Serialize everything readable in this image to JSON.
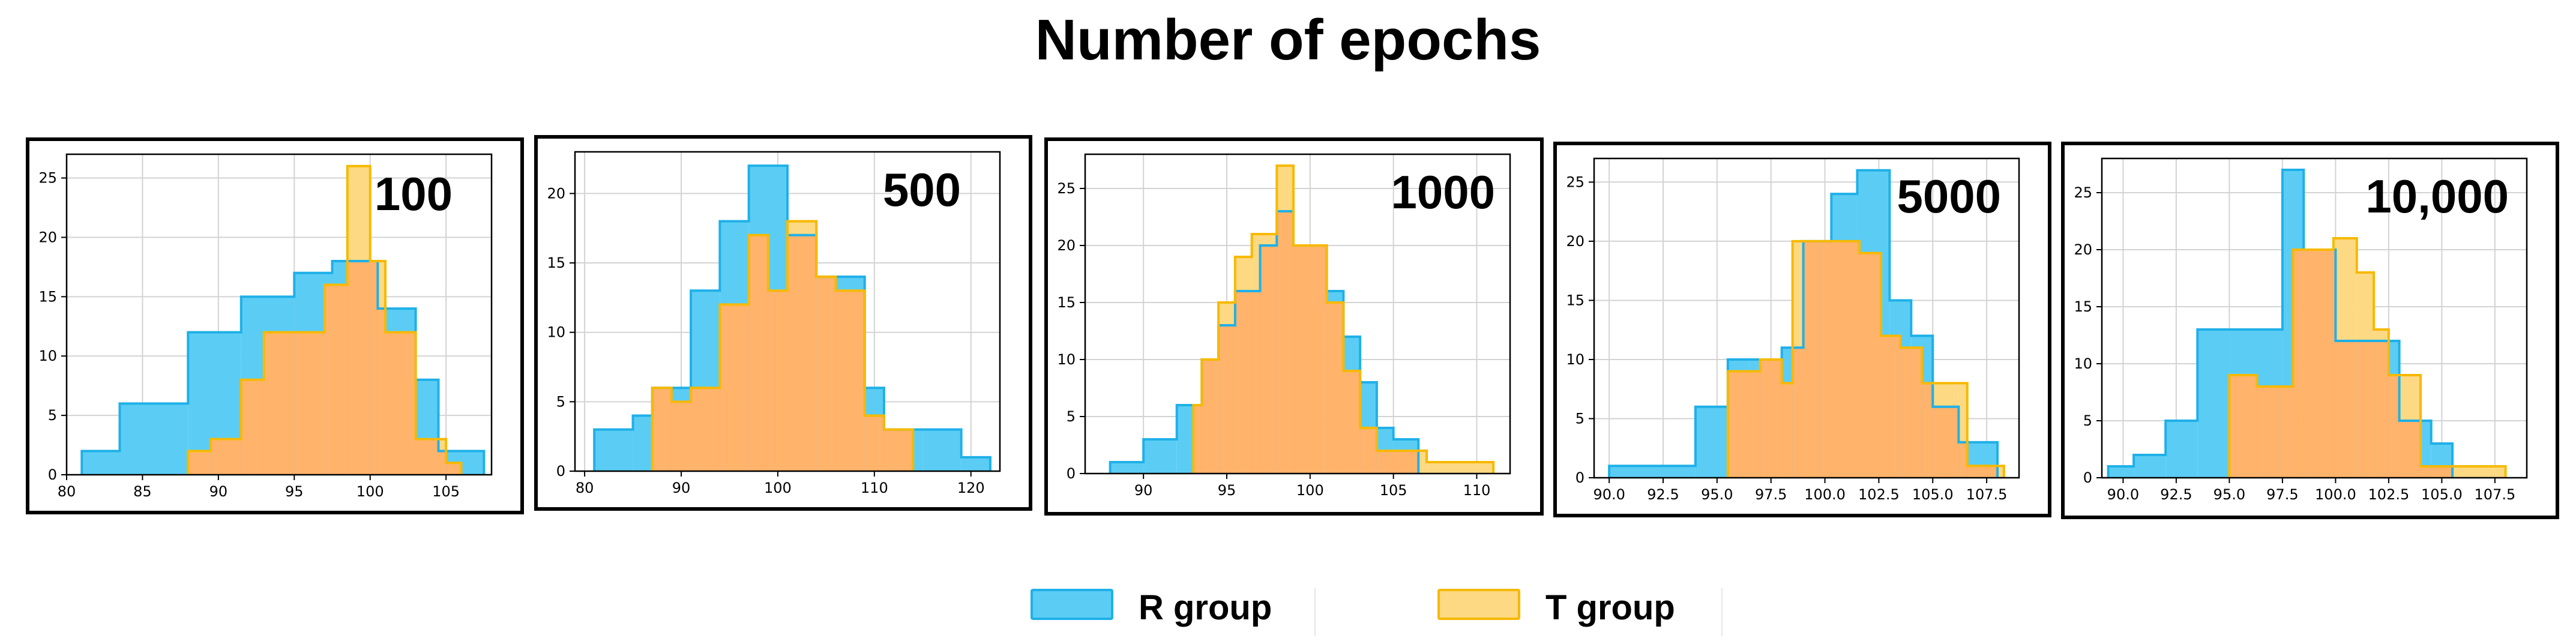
{
  "title": "Number of epochs",
  "colors": {
    "r_fill": "#5bcdf4",
    "r_edge": "#1fb0e8",
    "t_fill": "#ffb36b",
    "t_only": "#fcd982",
    "t_edge": "#f7b900",
    "grid": "#d3d3d3"
  },
  "legend": {
    "r_label": "R group",
    "t_label": "T group"
  },
  "chart_data": [
    {
      "type": "histogram",
      "panel_label": "100",
      "xlim": [
        80,
        108
      ],
      "ylim": [
        0,
        27
      ],
      "xticks": [
        80,
        85,
        90,
        95,
        100,
        105
      ],
      "xtick_labels": [
        "80",
        "85",
        "90",
        "95",
        "100",
        "105"
      ],
      "yticks": [
        0,
        5,
        10,
        15,
        20,
        25
      ],
      "grid": true,
      "series": [
        {
          "name": "R group",
          "edges": [
            81,
            83.5,
            88,
            91.5,
            95,
            97.5,
            100.5,
            103,
            104.5,
            107.5
          ],
          "counts": [
            2,
            6,
            12,
            15,
            17,
            18,
            14,
            8,
            2
          ]
        },
        {
          "name": "T group",
          "edges": [
            88,
            89.5,
            91.5,
            93,
            97,
            98.5,
            100,
            101,
            103,
            105,
            106
          ],
          "counts": [
            2,
            3,
            8,
            12,
            16,
            26,
            18,
            12,
            3,
            1
          ]
        }
      ]
    },
    {
      "type": "histogram",
      "panel_label": "500",
      "xlim": [
        79,
        123
      ],
      "ylim": [
        0,
        23
      ],
      "xticks": [
        80,
        90,
        100,
        110,
        120
      ],
      "xtick_labels": [
        "80",
        "90",
        "100",
        "110",
        "120"
      ],
      "yticks": [
        0,
        5,
        10,
        15,
        20
      ],
      "grid": true,
      "series": [
        {
          "name": "R group",
          "edges": [
            81,
            85,
            87,
            91,
            94,
            97,
            101,
            104,
            109,
            111,
            115,
            119,
            122
          ],
          "counts": [
            3,
            4,
            6,
            13,
            18,
            22,
            17,
            14,
            6,
            3,
            3,
            1
          ]
        },
        {
          "name": "T group",
          "edges": [
            87,
            89,
            91,
            94,
            97,
            99,
            101,
            104,
            106,
            109,
            111,
            114
          ],
          "counts": [
            6,
            5,
            6,
            12,
            17,
            13,
            18,
            14,
            13,
            4,
            3
          ]
        }
      ]
    },
    {
      "type": "histogram",
      "panel_label": "1000",
      "xlim": [
        86.5,
        112
      ],
      "ylim": [
        0,
        28
      ],
      "xticks": [
        90,
        95,
        100,
        105,
        110
      ],
      "xtick_labels": [
        "90",
        "95",
        "100",
        "105",
        "110"
      ],
      "yticks": [
        0,
        5,
        10,
        15,
        20,
        25
      ],
      "grid": true,
      "series": [
        {
          "name": "R group",
          "edges": [
            88,
            90,
            92,
            93.5,
            94.5,
            95.5,
            97,
            98,
            99,
            101,
            102,
            103,
            104,
            105,
            106.5
          ],
          "counts": [
            1,
            3,
            6,
            10,
            13,
            16,
            20,
            23,
            20,
            16,
            12,
            8,
            4,
            3
          ]
        },
        {
          "name": "T group",
          "edges": [
            93,
            93.5,
            94.5,
            95.5,
            96.5,
            98,
            99,
            101,
            102,
            103,
            104,
            107,
            111
          ],
          "counts": [
            6,
            10,
            15,
            19,
            21,
            27,
            20,
            15,
            9,
            4,
            2,
            1
          ]
        }
      ]
    },
    {
      "type": "histogram",
      "panel_label": "5000",
      "xlim": [
        89.3,
        109
      ],
      "ylim": [
        0,
        27
      ],
      "xticks": [
        90,
        92.5,
        95,
        97.5,
        100,
        102.5,
        105,
        107.5
      ],
      "xtick_labels": [
        "90.0",
        "92.5",
        "95.0",
        "97.5",
        "100.0",
        "102.5",
        "105.0",
        "107.5"
      ],
      "yticks": [
        0,
        5,
        10,
        15,
        20,
        25
      ],
      "grid": true,
      "series": [
        {
          "name": "R group",
          "edges": [
            90,
            94,
            95.5,
            96.5,
            98,
            99,
            100.3,
            101.5,
            103,
            104,
            105,
            106.2,
            108
          ],
          "counts": [
            1,
            6,
            10,
            10,
            11,
            20,
            24,
            26,
            15,
            12,
            6,
            3
          ]
        },
        {
          "name": "T group",
          "edges": [
            95.5,
            97,
            98,
            98.5,
            99.8,
            101.6,
            102.6,
            103.5,
            104.5,
            106.6,
            108.3
          ],
          "counts": [
            9,
            10,
            8,
            20,
            20,
            19,
            12,
            11,
            8,
            1
          ]
        }
      ]
    },
    {
      "type": "histogram",
      "panel_label": "10,000",
      "xlim": [
        89,
        109
      ],
      "ylim": [
        0,
        28
      ],
      "xticks": [
        90,
        92.5,
        95,
        97.5,
        100,
        102.5,
        105,
        107.5
      ],
      "xtick_labels": [
        "90.0",
        "92.5",
        "95.0",
        "97.5",
        "100.0",
        "102.5",
        "105.0",
        "107.5"
      ],
      "yticks": [
        0,
        5,
        10,
        15,
        20,
        25
      ],
      "grid": true,
      "series": [
        {
          "name": "R group",
          "edges": [
            89.3,
            90.5,
            92,
            93.5,
            95,
            97.5,
            98.5,
            100,
            101,
            103,
            104.5,
            105.5
          ],
          "counts": [
            1,
            2,
            5,
            13,
            13,
            27,
            20,
            12,
            12,
            5,
            3
          ]
        },
        {
          "name": "T group",
          "edges": [
            95,
            96.3,
            97.3,
            98,
            99.9,
            101,
            101.8,
            102.5,
            104,
            106.3,
            108
          ],
          "counts": [
            9,
            8,
            8,
            20,
            21,
            18,
            13,
            9,
            1,
            1
          ]
        }
      ]
    }
  ]
}
